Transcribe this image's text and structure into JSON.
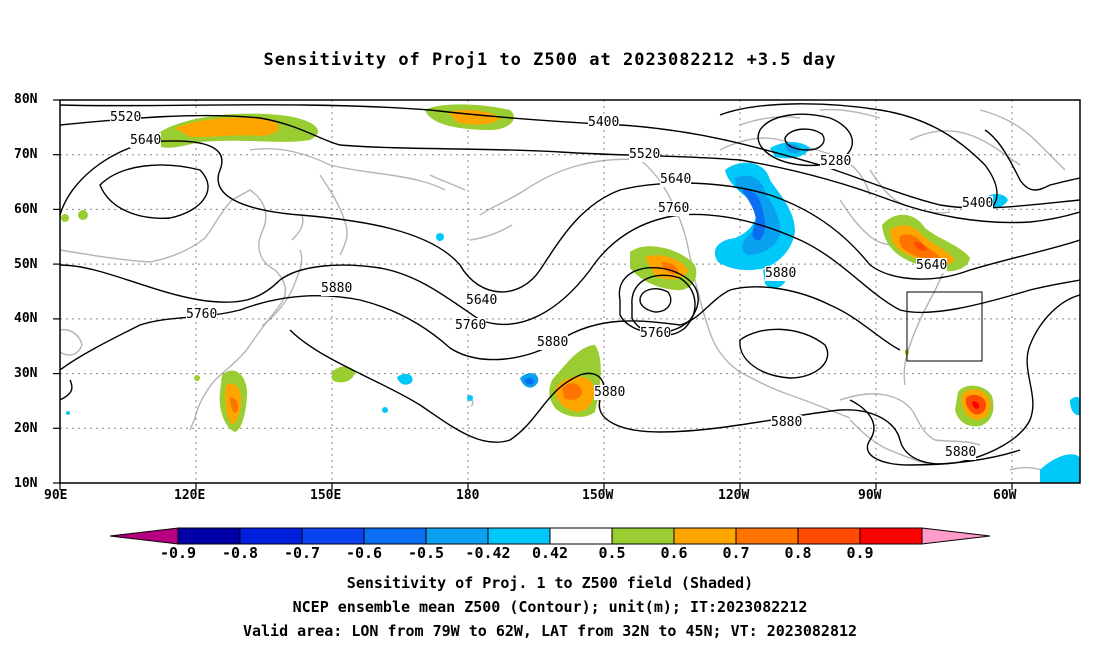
{
  "title": "Sensitivity of Proj1 to Z500 at 2023082212 +3.5 day",
  "lat_labels": [
    "80N",
    "70N",
    "60N",
    "50N",
    "40N",
    "30N",
    "20N",
    "10N"
  ],
  "lon_labels": [
    "90E",
    "120E",
    "150E",
    "180",
    "150W",
    "120W",
    "90W",
    "60W"
  ],
  "contour_labels": [
    {
      "text": "5520"
    },
    {
      "text": "5640"
    },
    {
      "text": "5400"
    },
    {
      "text": "5520"
    },
    {
      "text": "5640"
    },
    {
      "text": "5760"
    },
    {
      "text": "5280"
    },
    {
      "text": "5400"
    },
    {
      "text": "5640"
    },
    {
      "text": "5880"
    },
    {
      "text": "5760"
    },
    {
      "text": "5880"
    },
    {
      "text": "5640"
    },
    {
      "text": "5760"
    },
    {
      "text": "5760"
    },
    {
      "text": "5880"
    },
    {
      "text": "5880"
    },
    {
      "text": "5880"
    },
    {
      "text": "5880"
    }
  ],
  "colorbar": {
    "labels": [
      "-0.9",
      "-0.8",
      "-0.7",
      "-0.6",
      "-0.5",
      "-0.42",
      "0.42",
      "0.5",
      "0.6",
      "0.7",
      "0.8",
      "0.9"
    ],
    "colors": [
      "#b4007f",
      "#0000a8",
      "#0020e0",
      "#0a44f0",
      "#0a6ef2",
      "#0aa0f0",
      "#00c8f8",
      "#ffffff",
      "#9acd32",
      "#ffa500",
      "#ff7400",
      "#ff4a00",
      "#ff0000",
      "#ff9cc8"
    ]
  },
  "valid_box": {
    "lon_min": -79,
    "lon_max": -62,
    "lat_min": 32,
    "lat_max": 45
  },
  "footer": {
    "line1": "Sensitivity of Proj. 1 to Z500 field (Shaded)",
    "line2": "NCEP ensemble mean Z500 (Contour); unit(m); IT:2023082212",
    "line3": "Valid area: LON from 79W to 62W, LAT from 32N to 45N; VT: 2023082812"
  }
}
